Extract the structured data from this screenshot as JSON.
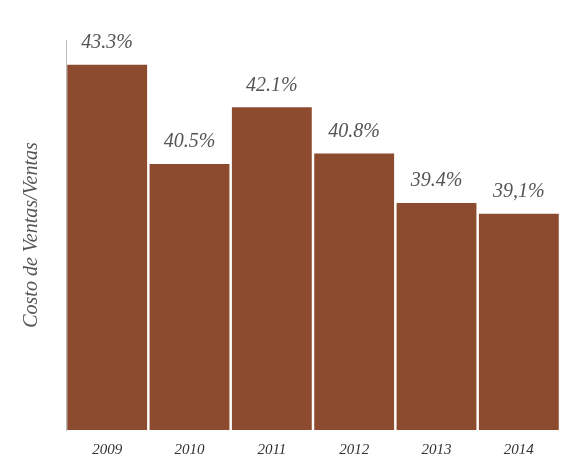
{
  "chart_data": {
    "type": "bar",
    "y_label": "Costo de Ventas/Ventas",
    "categories": [
      "2009",
      "2010",
      "2011",
      "2012",
      "2013",
      "2014"
    ],
    "values": [
      43.3,
      40.5,
      42.1,
      40.8,
      39.4,
      39.1
    ],
    "value_labels": [
      "43.3%",
      "40.5%",
      "42.1%",
      "40.8%",
      "39.4%",
      "39,1%"
    ],
    "color": "#8c4a2f",
    "ylim": [
      33,
      44
    ],
    "data_labels": true,
    "tick_labels": "x",
    "grid": false
  }
}
